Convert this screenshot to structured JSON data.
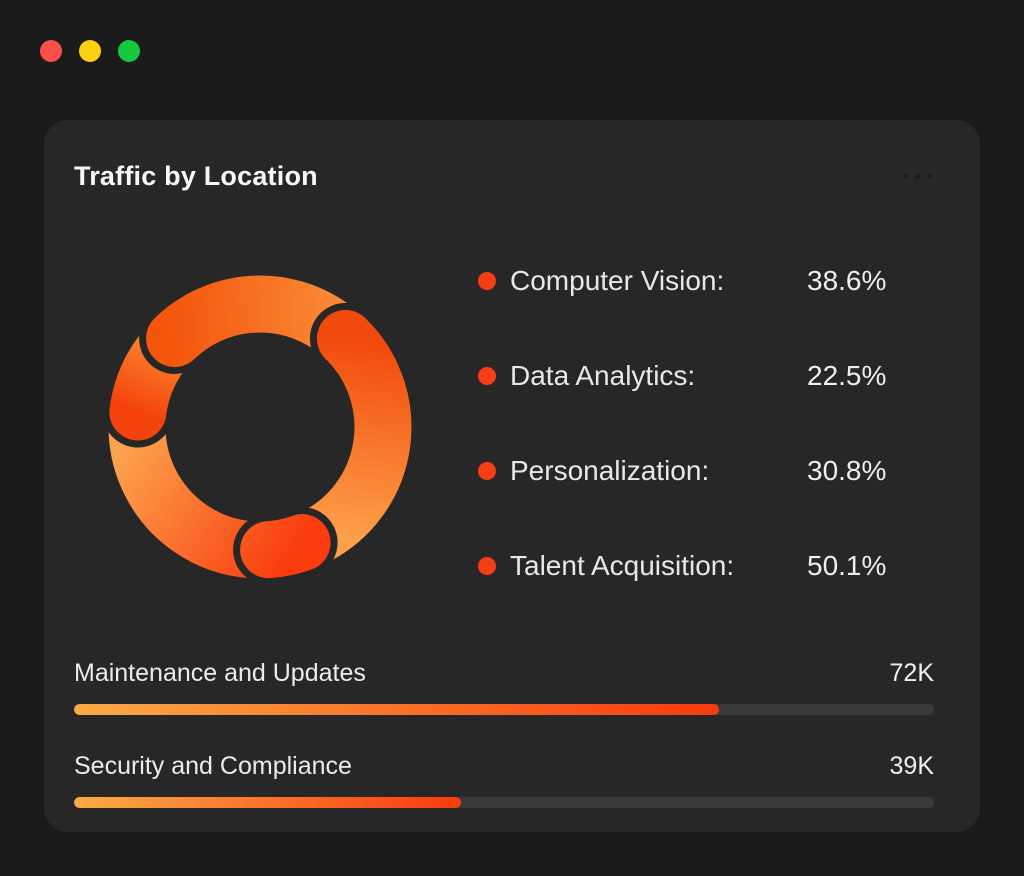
{
  "window": {
    "background": "#1b1b1b",
    "traffic_lights": [
      {
        "name": "close",
        "color": "#fb4f4b"
      },
      {
        "name": "minimize",
        "color": "#fdd013"
      },
      {
        "name": "zoom",
        "color": "#17c93f"
      }
    ]
  },
  "card": {
    "background": "#272727",
    "title": "Traffic by Location",
    "menu_icon": "ellipsis-horizontal",
    "legend_dot_color": "#f53e16",
    "legend": [
      {
        "label": "Computer Vision:",
        "value": "38.6%"
      },
      {
        "label": "Data Analytics:",
        "value": "22.5%"
      },
      {
        "label": "Personalization:",
        "value": "30.8%"
      },
      {
        "label": "Talent Acquisition:",
        "value": "50.1%"
      }
    ],
    "bars": [
      {
        "label": "Maintenance and Updates",
        "value": "72K",
        "fill_percent": 75
      },
      {
        "label": "Security and Compliance",
        "value": "39K",
        "fill_percent": 45
      }
    ],
    "bar_track_color": "#3a3a3a",
    "bar_gradient": [
      "#fbaa46",
      "#f93b0e"
    ]
  },
  "chart_data": [
    {
      "type": "pie",
      "subtype": "donut",
      "title": "Traffic by Location",
      "categories": [
        "Computer Vision",
        "Data Analytics",
        "Personalization",
        "Talent Acquisition"
      ],
      "values": [
        38.6,
        22.5,
        30.8,
        50.1
      ],
      "unit": "%",
      "legend_position": "right",
      "ring_stroke_width": 57,
      "gap_color": "#272727",
      "arcs": [
        {
          "start_deg": 160,
          "end_deg": 268,
          "color_start": "#fa3c0e",
          "color_end": "#fba24d"
        },
        {
          "start_deg": 277,
          "end_deg": 308,
          "color_start": "#f4430c",
          "color_end": "#f97f2b"
        },
        {
          "start_deg": 316,
          "end_deg": 395,
          "color_start": "#f4560e",
          "color_end": "#fa8732"
        },
        {
          "start_deg": 44,
          "end_deg": 152,
          "color_start": "#f24a0c",
          "color_end": "#fda14b"
        },
        {
          "start_deg": 160,
          "end_deg": 176,
          "grad_ref": 0
        }
      ]
    },
    {
      "type": "bar",
      "orientation": "horizontal",
      "categories": [
        "Maintenance and Updates",
        "Security and Compliance"
      ],
      "values": [
        72000,
        39000
      ],
      "value_labels": [
        "72K",
        "39K"
      ],
      "fill_percent": [
        75,
        45
      ]
    }
  ]
}
